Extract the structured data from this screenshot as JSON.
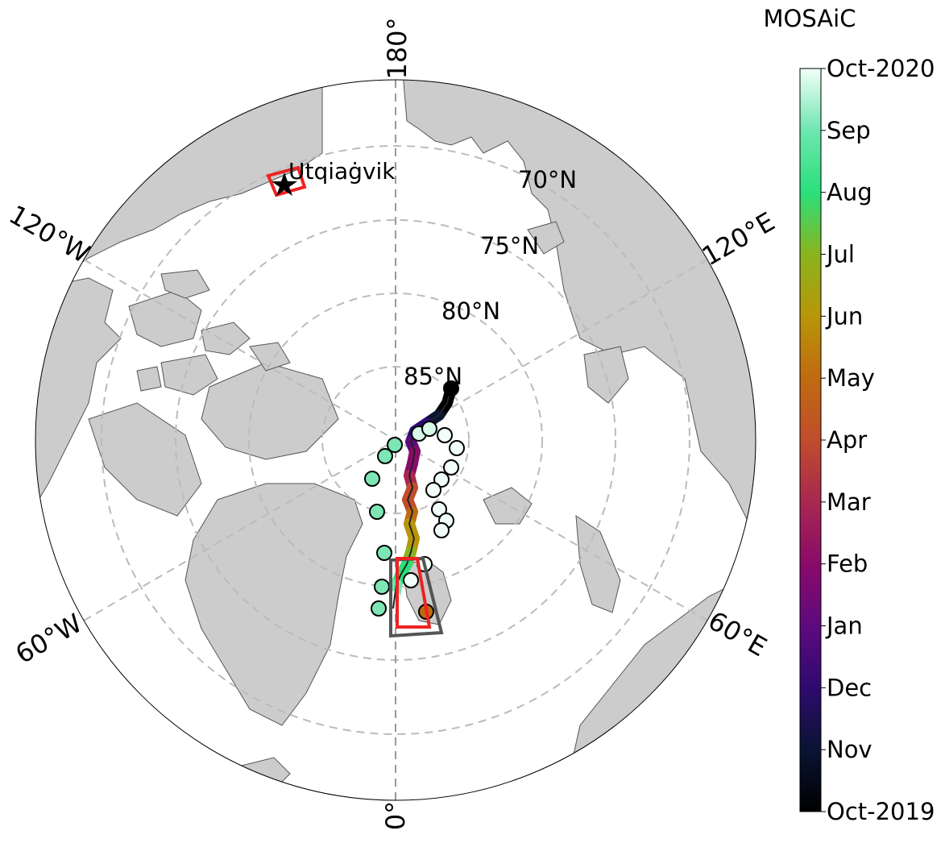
{
  "title": "MOSAiC",
  "map": {
    "projection": "north-polar-stereographic",
    "land_color": "#cccccc",
    "ocean_color": "#ffffff",
    "grid_color": "#bbbbbb",
    "meridian_labels": [
      {
        "text": "180°",
        "lon": 180
      },
      {
        "text": "120°E",
        "lon": 120
      },
      {
        "text": "60°E",
        "lon": 60
      },
      {
        "text": "0°",
        "lon": 0
      },
      {
        "text": "60°W",
        "lon": -60
      },
      {
        "text": "120°W",
        "lon": -120
      }
    ],
    "parallel_labels": [
      {
        "text": "70°N",
        "lat": 70
      },
      {
        "text": "75°N",
        "lat": 75
      },
      {
        "text": "80°N",
        "lat": 80
      },
      {
        "text": "85°N",
        "lat": 85
      }
    ],
    "site": {
      "name": "Utqiaġvik",
      "icon": "star-icon",
      "lat": 71.3,
      "lon": -156.8
    }
  },
  "colorbar": {
    "ticks": [
      "Oct-2019",
      "Nov",
      "Dec",
      "Jan",
      "Feb",
      "Mar",
      "Apr",
      "May",
      "Jun",
      "Jul",
      "Aug",
      "Sep",
      "Oct-2020"
    ],
    "colors": [
      "#000000",
      "#0a1433",
      "#2e0a6e",
      "#5e0a7e",
      "#8a0a6a",
      "#a82850",
      "#c04d2c",
      "#c06a10",
      "#b8960a",
      "#8ab41e",
      "#2ae07a",
      "#6ee6b0",
      "#f2fff8"
    ]
  }
}
